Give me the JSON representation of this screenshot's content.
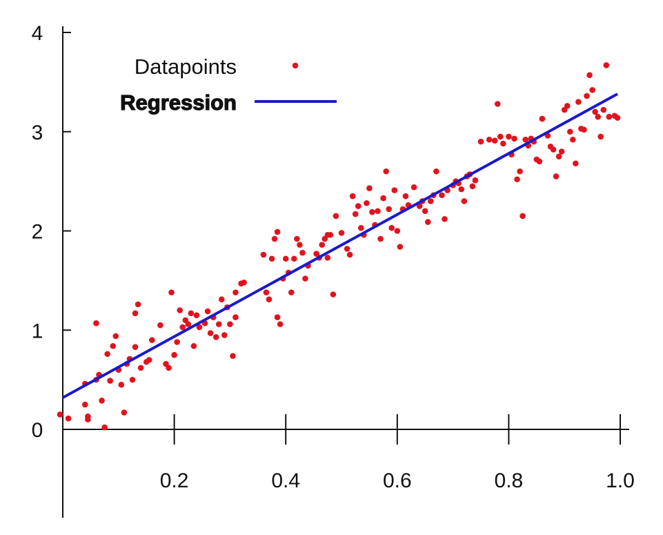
{
  "chart_data": {
    "type": "scatter",
    "title": "",
    "xlabel": "",
    "ylabel": "",
    "xlim": [
      0,
      1.0
    ],
    "ylim": [
      0,
      4
    ],
    "x_ticks": [
      {
        "value": 0.2,
        "label": "0.2"
      },
      {
        "value": 0.4,
        "label": "0.4"
      },
      {
        "value": 0.6,
        "label": "0.6"
      },
      {
        "value": 0.8,
        "label": "0.8"
      },
      {
        "value": 1.0,
        "label": "1.0"
      }
    ],
    "y_ticks": [
      {
        "value": 0,
        "label": "0"
      },
      {
        "value": 1,
        "label": "1"
      },
      {
        "value": 2,
        "label": "2"
      },
      {
        "value": 3,
        "label": "3"
      },
      {
        "value": 4,
        "label": "4"
      }
    ],
    "grid": false,
    "legend": {
      "placement": "top-left",
      "entries": [
        {
          "label": "Datapoints",
          "marker": "dot",
          "color": "#e0141e"
        },
        {
          "label": "Regression",
          "marker": "line",
          "color": "#1a1acc"
        }
      ]
    },
    "series": [
      {
        "name": "Datapoints",
        "kind": "scatter",
        "color": "#e0141e",
        "points": [
          [
            -0.005,
            0.15
          ],
          [
            0.01,
            0.11
          ],
          [
            0.04,
            0.46
          ],
          [
            0.04,
            0.25
          ],
          [
            0.045,
            0.13
          ],
          [
            0.045,
            0.1
          ],
          [
            0.06,
            1.07
          ],
          [
            0.06,
            0.5
          ],
          [
            0.065,
            0.55
          ],
          [
            0.07,
            0.29
          ],
          [
            0.075,
            0.02
          ],
          [
            0.08,
            0.76
          ],
          [
            0.085,
            0.49
          ],
          [
            0.09,
            0.84
          ],
          [
            0.095,
            0.94
          ],
          [
            0.1,
            0.6
          ],
          [
            0.105,
            0.45
          ],
          [
            0.11,
            0.17
          ],
          [
            0.115,
            0.66
          ],
          [
            0.12,
            0.71
          ],
          [
            0.125,
            0.5
          ],
          [
            0.13,
            0.83
          ],
          [
            0.13,
            1.17
          ],
          [
            0.135,
            1.26
          ],
          [
            0.14,
            0.62
          ],
          [
            0.15,
            0.68
          ],
          [
            0.155,
            0.7
          ],
          [
            0.16,
            0.9
          ],
          [
            0.175,
            1.05
          ],
          [
            0.185,
            0.66
          ],
          [
            0.19,
            0.62
          ],
          [
            0.195,
            1.38
          ],
          [
            0.2,
            0.75
          ],
          [
            0.205,
            0.88
          ],
          [
            0.21,
            1.2
          ],
          [
            0.215,
            1.03
          ],
          [
            0.22,
            1.1
          ],
          [
            0.225,
            1.06
          ],
          [
            0.23,
            1.17
          ],
          [
            0.235,
            0.84
          ],
          [
            0.24,
            1.15
          ],
          [
            0.245,
            1.03
          ],
          [
            0.255,
            1.07
          ],
          [
            0.26,
            1.19
          ],
          [
            0.265,
            0.97
          ],
          [
            0.27,
            1.13
          ],
          [
            0.275,
            0.93
          ],
          [
            0.28,
            1.06
          ],
          [
            0.285,
            1.31
          ],
          [
            0.29,
            0.95
          ],
          [
            0.295,
            1.23
          ],
          [
            0.3,
            1.06
          ],
          [
            0.305,
            0.74
          ],
          [
            0.31,
            1.13
          ],
          [
            0.31,
            1.38
          ],
          [
            0.32,
            1.47
          ],
          [
            0.325,
            1.48
          ],
          [
            0.36,
            1.76
          ],
          [
            0.365,
            1.38
          ],
          [
            0.37,
            1.31
          ],
          [
            0.375,
            1.72
          ],
          [
            0.38,
            1.92
          ],
          [
            0.385,
            1.99
          ],
          [
            0.385,
            1.13
          ],
          [
            0.39,
            1.06
          ],
          [
            0.395,
            1.52
          ],
          [
            0.4,
            1.72
          ],
          [
            0.405,
            1.58
          ],
          [
            0.41,
            1.38
          ],
          [
            0.415,
            1.72
          ],
          [
            0.42,
            1.92
          ],
          [
            0.425,
            1.86
          ],
          [
            0.43,
            1.78
          ],
          [
            0.435,
            1.52
          ],
          [
            0.44,
            1.65
          ],
          [
            0.455,
            1.77
          ],
          [
            0.46,
            1.73
          ],
          [
            0.465,
            1.86
          ],
          [
            0.47,
            1.92
          ],
          [
            0.475,
            1.96
          ],
          [
            0.475,
            1.73
          ],
          [
            0.48,
            1.96
          ],
          [
            0.485,
            1.36
          ],
          [
            0.49,
            2.15
          ],
          [
            0.5,
            1.98
          ],
          [
            0.51,
            1.82
          ],
          [
            0.515,
            1.76
          ],
          [
            0.52,
            2.35
          ],
          [
            0.525,
            2.17
          ],
          [
            0.53,
            2.25
          ],
          [
            0.535,
            2.03
          ],
          [
            0.54,
            1.96
          ],
          [
            0.545,
            2.28
          ],
          [
            0.55,
            2.43
          ],
          [
            0.555,
            2.19
          ],
          [
            0.56,
            2.06
          ],
          [
            0.565,
            2.2
          ],
          [
            0.57,
            1.92
          ],
          [
            0.575,
            2.33
          ],
          [
            0.58,
            2.6
          ],
          [
            0.585,
            2.22
          ],
          [
            0.59,
            2.03
          ],
          [
            0.595,
            2.41
          ],
          [
            0.6,
            2.0
          ],
          [
            0.605,
            1.84
          ],
          [
            0.61,
            2.22
          ],
          [
            0.615,
            2.35
          ],
          [
            0.62,
            2.26
          ],
          [
            0.63,
            2.44
          ],
          [
            0.64,
            2.25
          ],
          [
            0.645,
            2.3
          ],
          [
            0.65,
            2.2
          ],
          [
            0.655,
            2.09
          ],
          [
            0.66,
            2.3
          ],
          [
            0.665,
            2.36
          ],
          [
            0.67,
            2.6
          ],
          [
            0.68,
            2.36
          ],
          [
            0.685,
            2.12
          ],
          [
            0.69,
            2.41
          ],
          [
            0.7,
            2.46
          ],
          [
            0.705,
            2.5
          ],
          [
            0.71,
            2.48
          ],
          [
            0.715,
            2.42
          ],
          [
            0.72,
            2.3
          ],
          [
            0.725,
            2.55
          ],
          [
            0.73,
            2.57
          ],
          [
            0.735,
            2.45
          ],
          [
            0.74,
            2.51
          ],
          [
            0.75,
            2.9
          ],
          [
            0.765,
            2.92
          ],
          [
            0.775,
            2.91
          ],
          [
            0.78,
            3.28
          ],
          [
            0.785,
            2.95
          ],
          [
            0.79,
            2.88
          ],
          [
            0.8,
            2.95
          ],
          [
            0.805,
            2.77
          ],
          [
            0.81,
            2.93
          ],
          [
            0.815,
            2.52
          ],
          [
            0.82,
            2.6
          ],
          [
            0.825,
            2.15
          ],
          [
            0.83,
            2.92
          ],
          [
            0.835,
            2.86
          ],
          [
            0.84,
            2.93
          ],
          [
            0.845,
            2.9
          ],
          [
            0.85,
            2.72
          ],
          [
            0.855,
            2.7
          ],
          [
            0.86,
            3.13
          ],
          [
            0.87,
            2.96
          ],
          [
            0.875,
            2.85
          ],
          [
            0.88,
            2.82
          ],
          [
            0.885,
            2.55
          ],
          [
            0.89,
            2.75
          ],
          [
            0.895,
            2.8
          ],
          [
            0.9,
            3.22
          ],
          [
            0.905,
            3.26
          ],
          [
            0.91,
            3.0
          ],
          [
            0.915,
            2.92
          ],
          [
            0.92,
            2.68
          ],
          [
            0.925,
            3.3
          ],
          [
            0.93,
            3.03
          ],
          [
            0.935,
            3.02
          ],
          [
            0.94,
            3.36
          ],
          [
            0.945,
            3.57
          ],
          [
            0.95,
            3.42
          ],
          [
            0.955,
            3.2
          ],
          [
            0.96,
            3.15
          ],
          [
            0.965,
            2.95
          ],
          [
            0.97,
            3.22
          ],
          [
            0.975,
            3.67
          ],
          [
            0.98,
            3.15
          ],
          [
            0.99,
            3.16
          ],
          [
            0.995,
            3.14
          ]
        ]
      },
      {
        "name": "Regression",
        "kind": "line",
        "color": "#1a1acc",
        "points": [
          [
            0.0,
            0.32
          ],
          [
            0.995,
            3.38
          ]
        ]
      }
    ]
  }
}
